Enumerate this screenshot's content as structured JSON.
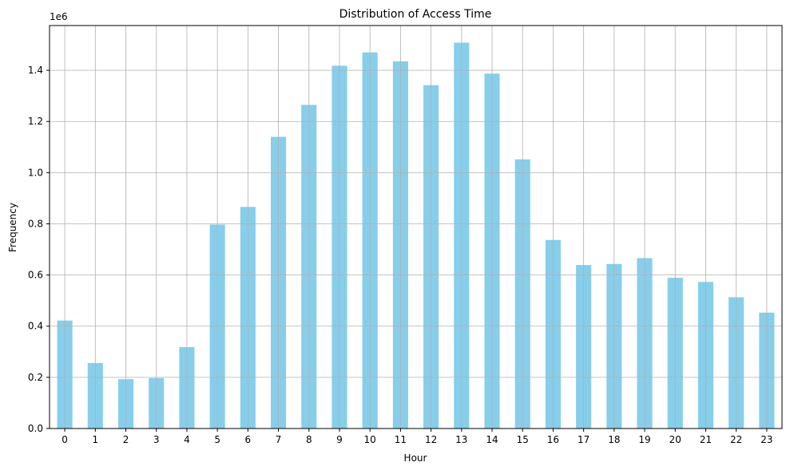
{
  "chart_data": {
    "type": "bar",
    "title": "Distribution of Access Time",
    "xlabel": "Hour",
    "ylabel": "Frequency",
    "y_offset_label": "1e6",
    "categories": [
      "0",
      "1",
      "2",
      "3",
      "4",
      "5",
      "6",
      "7",
      "8",
      "9",
      "10",
      "11",
      "12",
      "13",
      "14",
      "15",
      "16",
      "17",
      "18",
      "19",
      "20",
      "21",
      "22",
      "23"
    ],
    "values": [
      0.422,
      0.256,
      0.193,
      0.197,
      0.318,
      0.797,
      0.866,
      1.14,
      1.265,
      1.418,
      1.47,
      1.435,
      1.342,
      1.508,
      1.387,
      1.052,
      0.737,
      0.639,
      0.643,
      0.666,
      0.589,
      0.573,
      0.513,
      0.453
    ],
    "ylim": [
      0,
      1.575
    ],
    "yticks": [
      0.0,
      0.2,
      0.4,
      0.6,
      0.8,
      1.0,
      1.2,
      1.4
    ],
    "ytick_labels": [
      "0.0",
      "0.2",
      "0.4",
      "0.6",
      "0.8",
      "1.0",
      "1.2",
      "1.4"
    ],
    "grid": true,
    "colors": {
      "bar": "#87ceeb",
      "grid": "#b0b0b0",
      "axis": "#000000"
    }
  }
}
